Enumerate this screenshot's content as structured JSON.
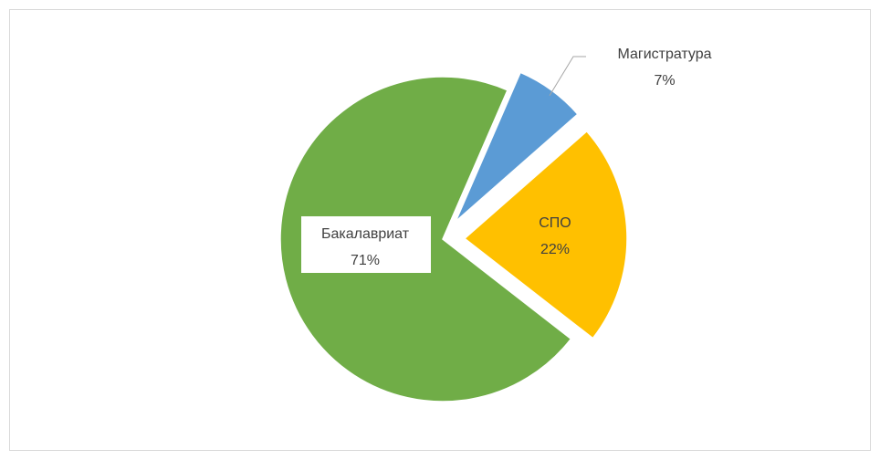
{
  "chart_data": {
    "type": "pie",
    "categories": [
      "Магистратура",
      "СПО",
      "Бакалавриат"
    ],
    "values": [
      7,
      22,
      71
    ],
    "value_labels": [
      "7%",
      "22%",
      "71%"
    ],
    "colors": [
      "#5b9bd5",
      "#ffc000",
      "#70ad47"
    ]
  }
}
